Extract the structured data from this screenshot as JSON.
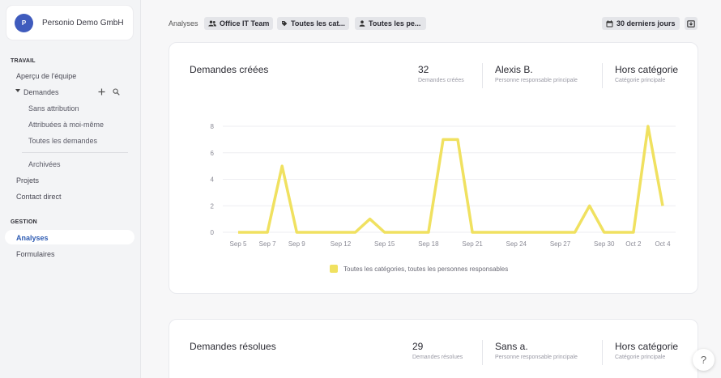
{
  "sidebar": {
    "org_initial": "P",
    "org_name": "Personio Demo GmbH",
    "section_work": "TRAVAIL",
    "team_overview": "Aperçu de l'équipe",
    "requests": "Demandes",
    "unassigned": "Sans attribution",
    "assigned_to_me": "Attribuées à moi-même",
    "all_requests": "Toutes les demandes",
    "archived": "Archivées",
    "projects": "Projets",
    "direct_contact": "Contact direct",
    "section_management": "GESTION",
    "analytics": "Analyses",
    "forms": "Formulaires"
  },
  "topbar": {
    "label": "Analyses",
    "team_chip": "Office IT Team",
    "category_chip": "Toutes les cat...",
    "person_chip": "Toutes les pe...",
    "date_range": "30 derniers jours"
  },
  "card1": {
    "title": "Demandes créées",
    "stats": [
      {
        "value": "32",
        "label": "Demandes créées"
      },
      {
        "value": "Alexis B.",
        "label": "Personne responsable principale"
      },
      {
        "value": "Hors catégorie",
        "label": "Catégorie principale"
      }
    ]
  },
  "card2": {
    "title": "Demandes résolues",
    "stats": [
      {
        "value": "29",
        "label": "Demandes résolues"
      },
      {
        "value": "Sans a.",
        "label": "Personne responsable principale"
      },
      {
        "value": "Hors catégorie",
        "label": "Catégorie principale"
      }
    ]
  },
  "help_label": "?",
  "chart_data": {
    "type": "line",
    "title": "Demandes créées",
    "xlabel": "",
    "ylabel": "",
    "ylim": [
      0,
      8
    ],
    "y_ticks": [
      "0",
      "2",
      "4",
      "6",
      "8"
    ],
    "x_ticks": [
      "Sep 5",
      "Sep 7",
      "Sep 9",
      "Sep 12",
      "Sep 15",
      "Sep 18",
      "Sep 21",
      "Sep 24",
      "Sep 27",
      "Sep 30",
      "Oct 2",
      "Oct 4"
    ],
    "grid": true,
    "color": "#f0e160",
    "series": [
      {
        "name": "Toutes les catégories, toutes les personnes responsables",
        "x": [
          "Sep 5",
          "Sep 6",
          "Sep 7",
          "Sep 8",
          "Sep 9",
          "Sep 10",
          "Sep 11",
          "Sep 12",
          "Sep 13",
          "Sep 14",
          "Sep 15",
          "Sep 16",
          "Sep 17",
          "Sep 18",
          "Sep 19",
          "Sep 20",
          "Sep 21",
          "Sep 22",
          "Sep 23",
          "Sep 24",
          "Sep 25",
          "Sep 26",
          "Sep 27",
          "Sep 28",
          "Sep 29",
          "Sep 30",
          "Oct 1",
          "Oct 2",
          "Oct 3",
          "Oct 4"
        ],
        "values": [
          0,
          0,
          0,
          5,
          0,
          0,
          0,
          0,
          0,
          1,
          0,
          0,
          0,
          0,
          7,
          7,
          0,
          0,
          0,
          0,
          0,
          0,
          0,
          0,
          2,
          0,
          0,
          0,
          8,
          2
        ]
      }
    ]
  }
}
